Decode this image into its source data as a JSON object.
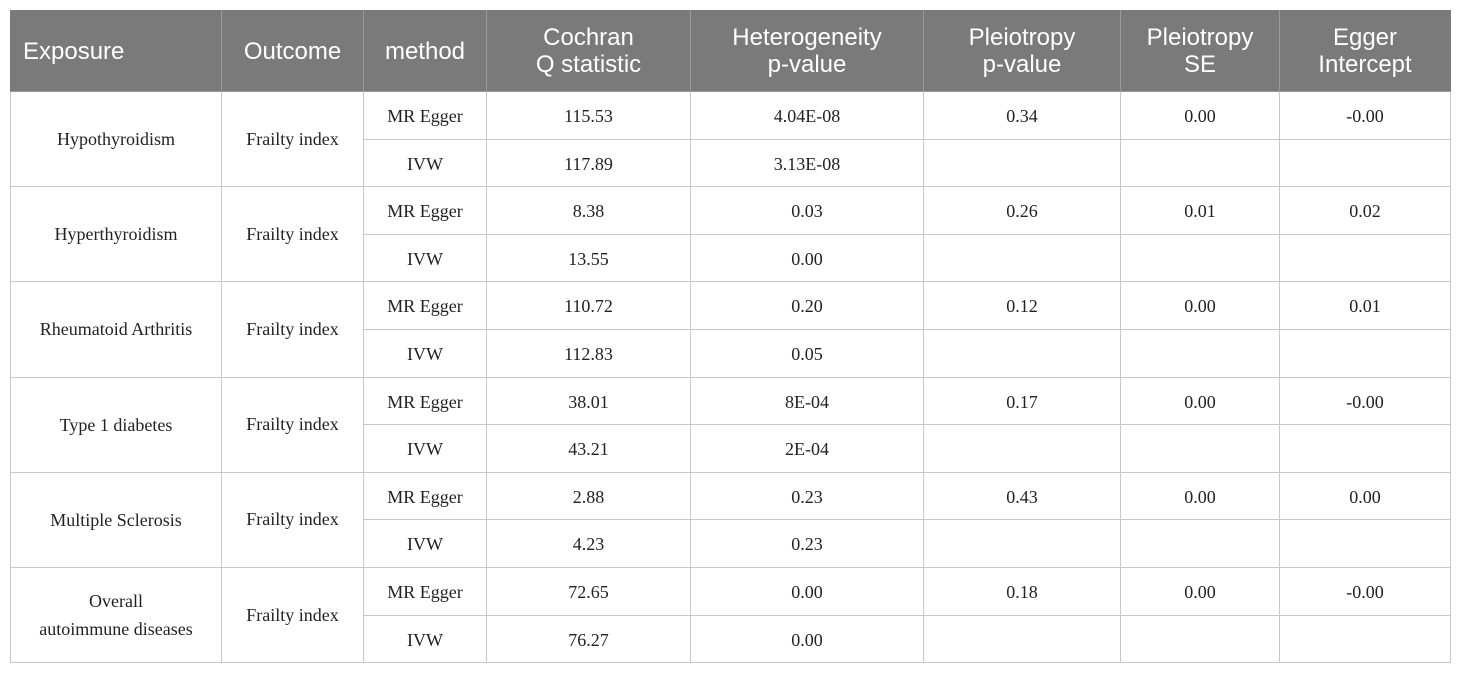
{
  "table": {
    "headers": [
      [
        "Exposure"
      ],
      [
        "Outcome"
      ],
      [
        "method"
      ],
      [
        "Cochran",
        "Q statistic"
      ],
      [
        "Heterogeneity",
        "p-value"
      ],
      [
        "Pleiotropy",
        "p-value"
      ],
      [
        "Pleiotropy",
        "SE"
      ],
      [
        "Egger",
        "Intercept"
      ]
    ],
    "groups": [
      {
        "exposure": [
          "Hypothyroidism"
        ],
        "outcome": "Frailty index",
        "pleiotropy_p": "0.34",
        "pleiotropy_se": "0.00",
        "egger_intercept": "-0.00",
        "rows": [
          {
            "method": "MR Egger",
            "cochran_q": "115.53",
            "het_p": "4.04E-08"
          },
          {
            "method": "IVW",
            "cochran_q": "117.89",
            "het_p": "3.13E-08"
          }
        ]
      },
      {
        "exposure": [
          "Hyperthyroidism"
        ],
        "outcome": "Frailty index",
        "pleiotropy_p": "0.26",
        "pleiotropy_se": "0.01",
        "egger_intercept": "0.02",
        "rows": [
          {
            "method": "MR Egger",
            "cochran_q": "8.38",
            "het_p": "0.03"
          },
          {
            "method": "IVW",
            "cochran_q": "13.55",
            "het_p": "0.00"
          }
        ]
      },
      {
        "exposure": [
          "Rheumatoid Arthritis"
        ],
        "outcome": "Frailty index",
        "pleiotropy_p": "0.12",
        "pleiotropy_se": "0.00",
        "egger_intercept": "0.01",
        "rows": [
          {
            "method": "MR Egger",
            "cochran_q": "110.72",
            "het_p": "0.20"
          },
          {
            "method": "IVW",
            "cochran_q": "112.83",
            "het_p": "0.05"
          }
        ]
      },
      {
        "exposure": [
          "Type 1 diabetes"
        ],
        "outcome": "Frailty index",
        "pleiotropy_p": "0.17",
        "pleiotropy_se": "0.00",
        "egger_intercept": "-0.00",
        "rows": [
          {
            "method": "MR Egger",
            "cochran_q": "38.01",
            "het_p": "8E-04"
          },
          {
            "method": "IVW",
            "cochran_q": "43.21",
            "het_p": "2E-04"
          }
        ]
      },
      {
        "exposure": [
          "Multiple Sclerosis"
        ],
        "outcome": "Frailty index",
        "pleiotropy_p": "0.43",
        "pleiotropy_se": "0.00",
        "egger_intercept": "0.00",
        "rows": [
          {
            "method": "MR Egger",
            "cochran_q": "2.88",
            "het_p": "0.23"
          },
          {
            "method": "IVW",
            "cochran_q": "4.23",
            "het_p": "0.23"
          }
        ]
      },
      {
        "exposure": [
          "Overall",
          "autoimmune diseases"
        ],
        "outcome": "Frailty index",
        "pleiotropy_p": "0.18",
        "pleiotropy_se": "0.00",
        "egger_intercept": "-0.00",
        "rows": [
          {
            "method": "MR Egger",
            "cochran_q": "72.65",
            "het_p": "0.00"
          },
          {
            "method": "IVW",
            "cochran_q": "76.27",
            "het_p": "0.00"
          }
        ]
      }
    ]
  }
}
